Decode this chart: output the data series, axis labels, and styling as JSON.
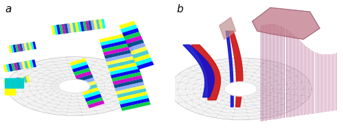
{
  "fig_width": 5.0,
  "fig_height": 2.05,
  "dpi": 100,
  "bg_color": "#ffffff",
  "label_a": "a",
  "label_b": "b",
  "label_fontsize": 11,
  "mesh_color": "#bbbbbb",
  "mesh_lw": 0.35,
  "stripe_colors": [
    "#ffff00",
    "#00ffff",
    "#0000ee",
    "#00cc44",
    "#cc00cc",
    "#004488",
    "#88aaff",
    "#ffff44",
    "#44cccc"
  ],
  "red_color": "#cc1111",
  "blue_color": "#1111cc",
  "pink_color": "#c08090"
}
